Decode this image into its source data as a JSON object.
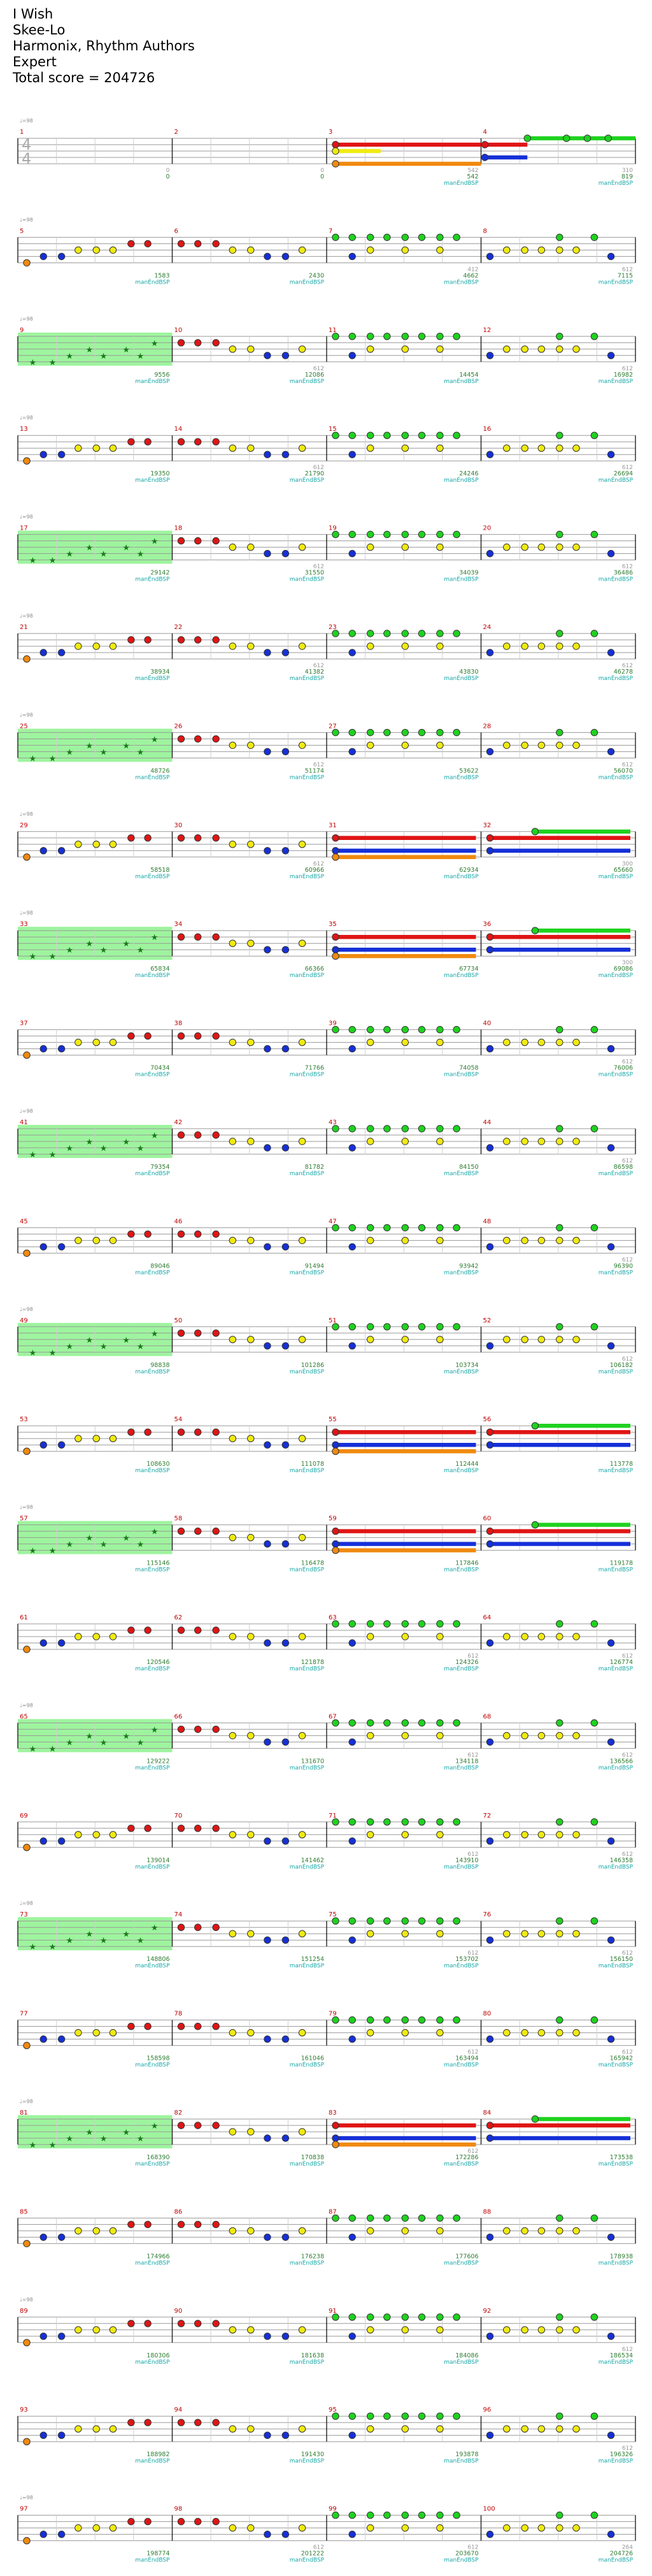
{
  "song": {
    "title": "I Wish",
    "artist": "Skee-Lo",
    "charter": "Harmonix, Rhythm Authors",
    "difficulty": "Expert",
    "total_score_label": "Total score = 204726"
  },
  "time_signature": {
    "numerator": "4",
    "denominator": "4"
  },
  "tempo_label": "♩=98",
  "measure_rows": [
    {
      "measures": [
        1,
        2,
        3,
        4
      ],
      "scores": [
        "0",
        "0",
        "542",
        "819"
      ],
      "counts": [
        "0",
        "0",
        "542",
        "310"
      ]
    },
    {
      "measures": [
        5,
        6,
        7,
        8
      ],
      "scores": [
        "1583",
        "2430",
        "4662",
        "7115"
      ],
      "counts": [
        "",
        "",
        "412",
        "612"
      ]
    },
    {
      "measures": [
        9,
        10,
        11,
        12
      ],
      "scores": [
        "9556",
        "12086",
        "14454",
        "16982"
      ],
      "counts": [
        "",
        "612",
        "",
        "612"
      ]
    },
    {
      "measures": [
        13,
        14,
        15,
        16
      ],
      "scores": [
        "19350",
        "21790",
        "24246",
        "26694"
      ],
      "counts": [
        "",
        "612",
        "",
        "612"
      ]
    },
    {
      "measures": [
        17,
        18,
        19,
        20
      ],
      "scores": [
        "29142",
        "31550",
        "34039",
        "36486"
      ],
      "counts": [
        "",
        "612",
        "",
        "612"
      ]
    },
    {
      "measures": [
        21,
        22,
        23,
        24
      ],
      "scores": [
        "38934",
        "41382",
        "43830",
        "46278"
      ],
      "counts": [
        "",
        "612",
        "",
        "612"
      ]
    },
    {
      "measures": [
        25,
        26,
        27,
        28
      ],
      "scores": [
        "48726",
        "51174",
        "53622",
        "56070"
      ],
      "counts": [
        "",
        "612",
        "",
        "612"
      ]
    },
    {
      "measures": [
        29,
        30,
        31,
        32
      ],
      "scores": [
        "58518",
        "60966",
        "62934",
        "65660"
      ],
      "counts": [
        "",
        "612",
        "",
        "300"
      ]
    },
    {
      "measures": [
        33,
        34,
        35,
        36
      ],
      "scores": [
        "65834",
        "66366",
        "67734",
        "69086"
      ],
      "counts": [
        "",
        "",
        "",
        "300"
      ]
    },
    {
      "measures": [
        37,
        38,
        39,
        40
      ],
      "scores": [
        "70434",
        "71766",
        "74058",
        "76006"
      ],
      "counts": [
        "",
        "",
        "",
        "612"
      ]
    },
    {
      "measures": [
        41,
        42,
        43,
        44
      ],
      "scores": [
        "79354",
        "81782",
        "84150",
        "86598"
      ],
      "counts": [
        "",
        "",
        "",
        "612"
      ]
    },
    {
      "measures": [
        45,
        46,
        47,
        48
      ],
      "scores": [
        "89046",
        "91494",
        "93942",
        "96390"
      ],
      "counts": [
        "",
        "",
        "",
        "612"
      ]
    },
    {
      "measures": [
        49,
        50,
        51,
        52
      ],
      "scores": [
        "98838",
        "101286",
        "103734",
        "106182"
      ],
      "counts": [
        "",
        "",
        "",
        "612"
      ]
    },
    {
      "measures": [
        53,
        54,
        55,
        56
      ],
      "scores": [
        "108630",
        "111078",
        "112444",
        "113778"
      ],
      "counts": [
        "",
        "",
        "",
        ""
      ]
    },
    {
      "measures": [
        57,
        58,
        59,
        60
      ],
      "scores": [
        "115146",
        "116478",
        "117846",
        "119178"
      ],
      "counts": [
        "",
        "",
        "",
        ""
      ]
    },
    {
      "measures": [
        61,
        62,
        63,
        64
      ],
      "scores": [
        "120546",
        "121878",
        "124326",
        "126774"
      ],
      "counts": [
        "",
        "",
        "612",
        "612"
      ]
    },
    {
      "measures": [
        65,
        66,
        67,
        68
      ],
      "scores": [
        "129222",
        "131670",
        "134118",
        "136566"
      ],
      "counts": [
        "",
        "",
        "612",
        "612"
      ]
    },
    {
      "measures": [
        69,
        70,
        71,
        72
      ],
      "scores": [
        "139014",
        "141462",
        "143910",
        "146358"
      ],
      "counts": [
        "",
        "",
        "612",
        "612"
      ]
    },
    {
      "measures": [
        73,
        74,
        75,
        76
      ],
      "scores": [
        "148806",
        "151254",
        "153702",
        "156150"
      ],
      "counts": [
        "",
        "",
        "612",
        "612"
      ]
    },
    {
      "measures": [
        77,
        78,
        79,
        80
      ],
      "scores": [
        "158598",
        "161046",
        "163494",
        "165942"
      ],
      "counts": [
        "",
        "",
        "612",
        "612"
      ]
    },
    {
      "measures": [
        81,
        82,
        83,
        84
      ],
      "scores": [
        "168390",
        "170838",
        "172286",
        "173538"
      ],
      "counts": [
        "",
        "",
        "612",
        ""
      ]
    },
    {
      "measures": [
        85,
        86,
        87,
        88
      ],
      "scores": [
        "174966",
        "176238",
        "177606",
        "178938"
      ],
      "counts": [
        "",
        "",
        "",
        ""
      ]
    },
    {
      "measures": [
        89,
        90,
        91,
        92
      ],
      "scores": [
        "180306",
        "181638",
        "184086",
        "186534"
      ],
      "counts": [
        "",
        "",
        "",
        "612"
      ]
    },
    {
      "measures": [
        93,
        94,
        95,
        96
      ],
      "scores": [
        "188982",
        "191430",
        "193878",
        "196326"
      ],
      "counts": [
        "",
        "",
        "",
        "612"
      ]
    },
    {
      "measures": [
        97,
        98,
        99,
        100
      ],
      "scores": [
        "198774",
        "201222",
        "203670",
        "204726"
      ],
      "counts": [
        "",
        "612",
        "612",
        "264"
      ]
    }
  ],
  "annotations": {
    "section_label": "manÉndBSP",
    "short_tempo": "♩=98",
    "tempo_95": "♩=95",
    "tempo_100": "♩=100"
  },
  "colors": {
    "green": "#1fd21f",
    "red": "#e01515",
    "yellow": "#f0ea12",
    "blue": "#1530d8",
    "orange": "#f08a10",
    "star_power": "#7ef07e",
    "star_glyph": "#1b7a1b",
    "grid_line": "#9a9a9a",
    "score_text": "#2e7d32",
    "count_text": "#999999",
    "section_text": "#17a7a7",
    "measure_text": "#c00000"
  }
}
